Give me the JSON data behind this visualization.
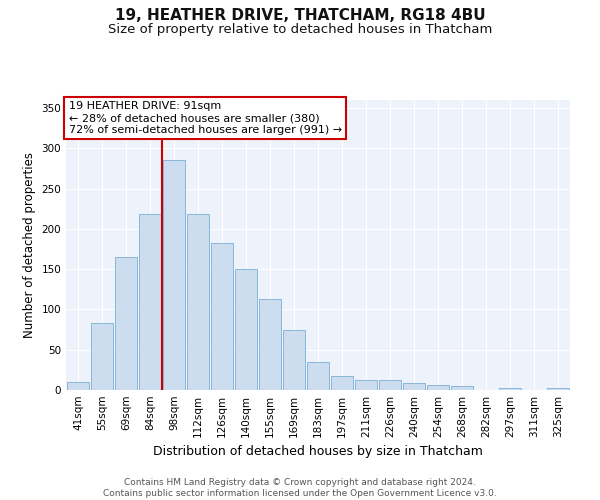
{
  "title": "19, HEATHER DRIVE, THATCHAM, RG18 4BU",
  "subtitle": "Size of property relative to detached houses in Thatcham",
  "xlabel": "Distribution of detached houses by size in Thatcham",
  "ylabel": "Number of detached properties",
  "bar_labels": [
    "41sqm",
    "55sqm",
    "69sqm",
    "84sqm",
    "98sqm",
    "112sqm",
    "126sqm",
    "140sqm",
    "155sqm",
    "169sqm",
    "183sqm",
    "197sqm",
    "211sqm",
    "226sqm",
    "240sqm",
    "254sqm",
    "268sqm",
    "282sqm",
    "297sqm",
    "311sqm",
    "325sqm"
  ],
  "bar_values": [
    10,
    83,
    165,
    218,
    286,
    218,
    183,
    150,
    113,
    75,
    35,
    18,
    13,
    12,
    9,
    6,
    5,
    0,
    2,
    0,
    3
  ],
  "bar_color": "#ccddf0",
  "bar_edge_color": "#7bafd4",
  "vline_color": "#cc0000",
  "vline_bar_index": 4,
  "annotation_title": "19 HEATHER DRIVE: 91sqm",
  "annotation_line1": "← 28% of detached houses are smaller (380)",
  "annotation_line2": "72% of semi-detached houses are larger (991) →",
  "annotation_box_color": "#ffffff",
  "annotation_box_edge": "#cc0000",
  "ylim": [
    0,
    360
  ],
  "yticks": [
    0,
    50,
    100,
    150,
    200,
    250,
    300,
    350
  ],
  "bg_color": "#eef2fa",
  "footer_line1": "Contains HM Land Registry data © Crown copyright and database right 2024.",
  "footer_line2": "Contains public sector information licensed under the Open Government Licence v3.0.",
  "title_fontsize": 11,
  "subtitle_fontsize": 9.5,
  "xlabel_fontsize": 9,
  "ylabel_fontsize": 8.5,
  "tick_fontsize": 7.5,
  "annotation_fontsize": 8,
  "footer_fontsize": 6.5
}
